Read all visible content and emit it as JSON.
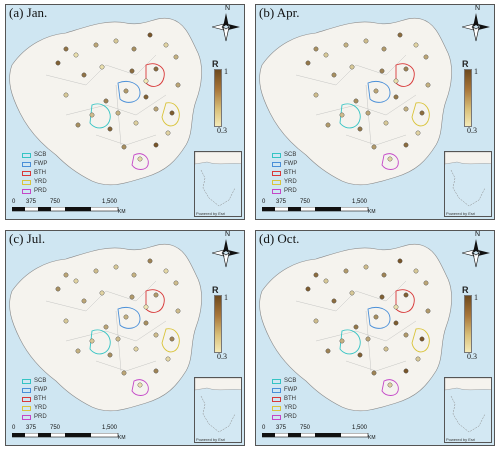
{
  "panels": [
    {
      "label": "(a) Jan.",
      "stations": [
        0.82,
        0.35,
        0.9,
        0.6,
        0.45,
        0.7,
        0.95,
        0.4,
        0.55,
        0.85,
        0.3,
        0.65,
        0.75,
        0.5,
        0.88,
        0.42,
        0.6,
        0.92,
        0.38,
        0.7
      ]
    },
    {
      "label": "(b) Apr.",
      "stations": [
        0.7,
        0.45,
        0.8,
        0.55,
        0.5,
        0.65,
        0.85,
        0.4,
        0.6,
        0.75,
        0.35,
        0.6,
        0.7,
        0.5,
        0.8,
        0.45,
        0.55,
        0.85,
        0.4,
        0.65
      ]
    },
    {
      "label": "(c) Jul.",
      "stations": [
        0.6,
        0.4,
        0.7,
        0.5,
        0.45,
        0.55,
        0.75,
        0.38,
        0.5,
        0.65,
        0.32,
        0.55,
        0.6,
        0.45,
        0.7,
        0.4,
        0.5,
        0.75,
        0.35,
        0.6
      ]
    },
    {
      "label": "(d) Oct.",
      "stations": [
        0.85,
        0.45,
        0.92,
        0.65,
        0.5,
        0.75,
        0.95,
        0.45,
        0.6,
        0.9,
        0.35,
        0.7,
        0.8,
        0.55,
        0.9,
        0.48,
        0.65,
        0.95,
        0.42,
        0.75
      ]
    }
  ],
  "north_label": "N",
  "colorbar": {
    "title": "R",
    "max_label": "1",
    "min_label": "0.3",
    "range": [
      0.3,
      1
    ]
  },
  "legend": [
    {
      "label": "SCB",
      "color": "#35c4c4"
    },
    {
      "label": "FWP",
      "color": "#4a8fd8"
    },
    {
      "label": "BTH",
      "color": "#d8393a"
    },
    {
      "label": "YRD",
      "color": "#d9c43b"
    },
    {
      "label": "PRD",
      "color": "#c447c8"
    }
  ],
  "scale_labels": [
    "0",
    "375",
    "750",
    "1,500"
  ],
  "scale_unit": "KM",
  "inset_credit": "Powered by Esri",
  "colors": {
    "ocean": "#cfe6f2",
    "land": "#f5f3ee",
    "border": "#8a8a8a"
  }
}
